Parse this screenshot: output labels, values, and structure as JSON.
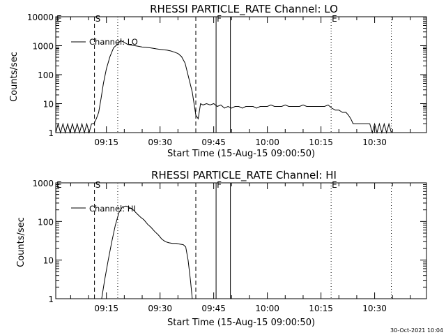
{
  "timestamp": "30-Oct-2021 10:04",
  "chart_data": [
    {
      "type": "line",
      "title": "RHESSI PARTICLE_RATE Channel: LO",
      "xlabel": "Start Time (15-Aug-15 09:00:50)",
      "ylabel": "Counts/sec",
      "yscale": "log",
      "ylim": [
        1,
        10000
      ],
      "xlim": [
        "09:00:50",
        "10:44:30"
      ],
      "xticks": [
        "09:15",
        "09:30",
        "09:45",
        "10:00",
        "10:15",
        "10:30"
      ],
      "yticks": [
        "1",
        "10",
        "100",
        "1000",
        "10000"
      ],
      "legend": "Channel: LO",
      "legend_position": "top-left",
      "grid": false,
      "markers": [
        {
          "label": "E",
          "time": "09:00:50",
          "style": "none"
        },
        {
          "label": "S",
          "time": "09:11:40",
          "style": "dashed"
        },
        {
          "label": "",
          "time": "09:18:10",
          "style": "dotted"
        },
        {
          "label": "",
          "time": "09:40:00",
          "style": "dashed"
        },
        {
          "label": "F",
          "time": "09:45:40",
          "style": "solid"
        },
        {
          "label": "",
          "time": "09:49:40",
          "style": "solid"
        },
        {
          "label": "E",
          "time": "10:17:50",
          "style": "dotted"
        },
        {
          "label": "",
          "time": "10:34:40",
          "style": "dotted"
        }
      ],
      "series": [
        {
          "x": [
            "09:00:50",
            "09:01:30",
            "09:02:10",
            "09:02:50",
            "09:03:30",
            "09:04:10",
            "09:04:50",
            "09:05:30",
            "09:06:10",
            "09:06:50",
            "09:07:30",
            "09:08:10",
            "09:08:50",
            "09:09:30",
            "09:10:10",
            "09:10:50",
            "09:11:30",
            "09:12:10",
            "09:12:50",
            "09:13:30",
            "09:14:10",
            "09:15:00",
            "09:16:00",
            "09:17:00",
            "09:18:00",
            "09:19:00",
            "09:20:00",
            "09:21:00",
            "09:22:00",
            "09:23:00",
            "09:24:00",
            "09:25:00",
            "09:26:00",
            "09:27:00",
            "09:28:00",
            "09:29:00",
            "09:30:00",
            "09:31:00",
            "09:32:00",
            "09:33:00",
            "09:34:00",
            "09:35:00",
            "09:36:00",
            "09:37:00",
            "09:38:00",
            "09:39:00",
            "09:40:00",
            "09:40:40",
            "09:41:20",
            "09:42:00",
            "09:43:00",
            "09:44:00",
            "09:45:00",
            "09:46:00",
            "09:47:00",
            "09:48:00",
            "09:49:00",
            "09:50:00",
            "09:51:00",
            "09:52:00",
            "09:53:00",
            "09:54:00",
            "09:55:00",
            "09:56:00",
            "09:57:00",
            "09:58:00",
            "09:59:00",
            "10:00:00",
            "10:01:00",
            "10:02:00",
            "10:03:00",
            "10:04:00",
            "10:05:00",
            "10:06:00",
            "10:07:00",
            "10:08:00",
            "10:09:00",
            "10:10:00",
            "10:11:00",
            "10:12:00",
            "10:13:00",
            "10:14:00",
            "10:15:00",
            "10:16:00",
            "10:17:00",
            "10:18:00",
            "10:19:00",
            "10:20:00",
            "10:21:00",
            "10:22:00",
            "10:22:40",
            "10:23:20",
            "10:24:00",
            "10:24:40",
            "10:25:20",
            "10:26:00",
            "10:26:40",
            "10:27:20",
            "10:28:00",
            "10:28:40",
            "10:29:20",
            "10:30:00",
            "10:30:40",
            "10:31:20",
            "10:32:00",
            "10:32:40",
            "10:33:20",
            "10:34:00",
            "10:34:40"
          ],
          "y": [
            1,
            2,
            1,
            2,
            1,
            2,
            1,
            2,
            1,
            2,
            1,
            2,
            1,
            2,
            1,
            2,
            2,
            3,
            5,
            15,
            50,
            160,
            420,
            850,
            1100,
            1500,
            1300,
            1100,
            1050,
            1000,
            950,
            900,
            880,
            850,
            820,
            780,
            750,
            720,
            700,
            660,
            600,
            540,
            420,
            250,
            80,
            25,
            4,
            3,
            10,
            9,
            10,
            9,
            10,
            8,
            9,
            7,
            8,
            7,
            8,
            8,
            7,
            8,
            8,
            8,
            7,
            8,
            8,
            8,
            9,
            8,
            8,
            8,
            9,
            8,
            8,
            8,
            8,
            9,
            8,
            8,
            8,
            8,
            8,
            8,
            9,
            7,
            6,
            6,
            5,
            5,
            4,
            3,
            2,
            2,
            2,
            2,
            2,
            2,
            2,
            2,
            1,
            2,
            1,
            2,
            1,
            2,
            1,
            2,
            1
          ]
        }
      ]
    },
    {
      "type": "line",
      "title": "RHESSI PARTICLE_RATE Channel: HI",
      "xlabel": "Start Time (15-Aug-15 09:00:50)",
      "ylabel": "Counts/sec",
      "yscale": "log",
      "ylim": [
        1,
        1000
      ],
      "xlim": [
        "09:00:50",
        "10:44:30"
      ],
      "xticks": [
        "09:15",
        "09:30",
        "09:45",
        "10:00",
        "10:15",
        "10:30"
      ],
      "yticks": [
        "1",
        "10",
        "100",
        "1000"
      ],
      "legend": "Channel: HI",
      "legend_position": "top-left",
      "grid": false,
      "markers": [
        {
          "label": "E",
          "time": "09:00:50",
          "style": "none"
        },
        {
          "label": "S",
          "time": "09:11:40",
          "style": "dashed"
        },
        {
          "label": "",
          "time": "09:18:10",
          "style": "dotted"
        },
        {
          "label": "",
          "time": "09:40:00",
          "style": "dashed"
        },
        {
          "label": "F",
          "time": "09:45:40",
          "style": "solid"
        },
        {
          "label": "",
          "time": "09:49:40",
          "style": "solid"
        },
        {
          "label": "E",
          "time": "10:17:50",
          "style": "dotted"
        },
        {
          "label": "",
          "time": "10:34:40",
          "style": "dotted"
        }
      ],
      "series": [
        {
          "x": [
            "09:13:40",
            "09:14:30",
            "09:15:30",
            "09:16:30",
            "09:17:30",
            "09:18:30",
            "09:19:30",
            "09:20:30",
            "09:21:30",
            "09:22:30",
            "09:23:30",
            "09:24:30",
            "09:25:30",
            "09:26:30",
            "09:27:30",
            "09:28:30",
            "09:29:30",
            "09:30:30",
            "09:31:30",
            "09:32:30",
            "09:33:30",
            "09:34:30",
            "09:35:30",
            "09:36:30",
            "09:37:10",
            "09:37:50",
            "09:38:30",
            "09:39:00"
          ],
          "y": [
            1,
            3,
            10,
            30,
            80,
            170,
            240,
            250,
            230,
            200,
            160,
            130,
            110,
            85,
            70,
            55,
            45,
            35,
            30,
            28,
            27,
            27,
            26,
            25,
            22,
            10,
            3,
            1
          ]
        }
      ]
    }
  ]
}
